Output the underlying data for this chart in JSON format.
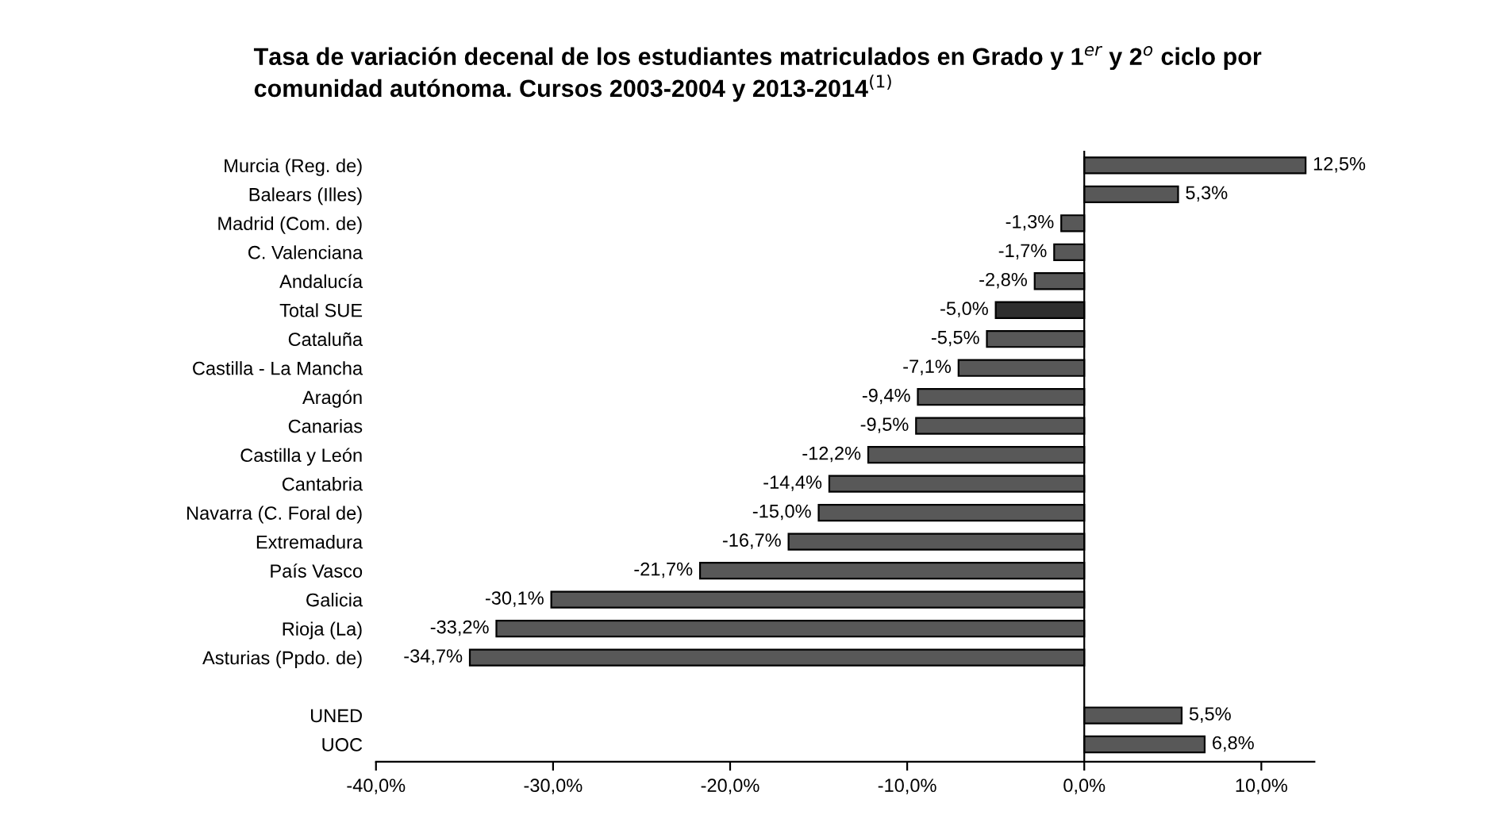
{
  "chart_data": {
    "type": "bar",
    "orientation": "horizontal",
    "title": "Tasa de variación decenal de los estudiantes matriculados en Grado y 1$^{er}$ y 2$^{o}$ ciclo por\ncomunidad autónoma. Cursos 2003-2004 y 2013-2014$^{(1)}$",
    "categories": [
      "Murcia (Reg. de)",
      "Balears (Illes)",
      "Madrid (Com. de)",
      "C. Valenciana",
      "Andalucía",
      "Total SUE",
      "Cataluña",
      "Castilla - La Mancha",
      "Aragón",
      "Canarias",
      "Castilla y León",
      "Cantabria",
      "Navarra (C. Foral de)",
      "Extremadura",
      "País Vasco",
      "Galicia",
      "Rioja (La)",
      "Asturias (Ppdo. de)",
      null,
      "UNED",
      "UOC"
    ],
    "values": [
      12.5,
      5.3,
      -1.3,
      -1.7,
      -2.8,
      -5.0,
      -5.5,
      -7.1,
      -9.4,
      -9.5,
      -12.2,
      -14.4,
      -15.0,
      -16.7,
      -21.7,
      -30.1,
      -33.2,
      -34.7,
      null,
      5.5,
      6.8
    ],
    "value_labels": [
      "12,5%",
      "5,3%",
      "-1,3%",
      "-1,7%",
      "-2,8%",
      "-5,0%",
      "-5,5%",
      "-7,1%",
      "-9,4%",
      "-9,5%",
      "-12,2%",
      "-14,4%",
      "-15,0%",
      "-16,7%",
      "-21,7%",
      "-30,1%",
      "-33,2%",
      "-34,7%",
      null,
      "5,5%",
      "6,8%"
    ],
    "colors": [
      "#585858",
      "#585858",
      "#585858",
      "#585858",
      "#585858",
      "#2e2e2e",
      "#585858",
      "#585858",
      "#585858",
      "#585858",
      "#585858",
      "#585858",
      "#585858",
      "#585858",
      "#585858",
      "#585858",
      "#585858",
      "#585858",
      "#585858",
      "#585858",
      "#585858"
    ],
    "xlim": [
      -40,
      13
    ],
    "xticks": [
      {
        "value": -40,
        "label": "-40,0%"
      },
      {
        "value": -30,
        "label": "-30,0%"
      },
      {
        "value": -20,
        "label": "-20,0%"
      },
      {
        "value": -10,
        "label": "-10,0%"
      },
      {
        "value": 0,
        "label": "0,0%"
      },
      {
        "value": 10,
        "label": "10,0%"
      }
    ],
    "ref_lines": [
      {
        "axis": "x",
        "value": 0,
        "color": "#000000"
      }
    ],
    "legend": false
  }
}
